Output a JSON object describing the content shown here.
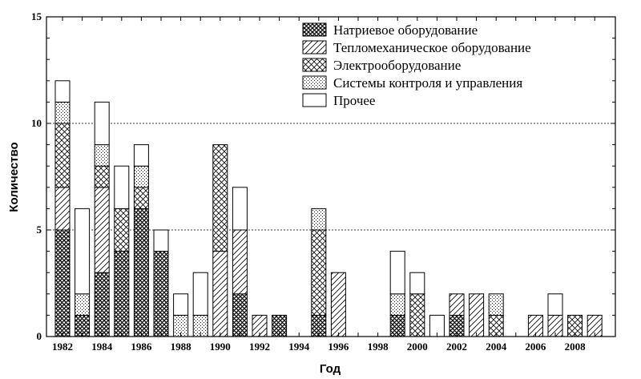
{
  "chart_data": {
    "type": "bar",
    "stacked": true,
    "title": "",
    "xlabel": "Год",
    "ylabel": "Количество",
    "ylim": [
      0,
      15
    ],
    "y_ticks": [
      0,
      5,
      10,
      15
    ],
    "x_tick_labels": [
      "1982",
      "1984",
      "1986",
      "1988",
      "1990",
      "1992",
      "1994",
      "1996",
      "1998",
      "2000",
      "2002",
      "2004",
      "2006",
      "2008"
    ],
    "grid": "horizontal dotted at 5 and 10",
    "legend_position": "top-right",
    "categories": [
      "1982",
      "1983",
      "1984",
      "1985",
      "1986",
      "1987",
      "1988",
      "1989",
      "1990",
      "1991",
      "1992",
      "1993",
      "1994",
      "1995",
      "1996",
      "1997",
      "1998",
      "1999",
      "2000",
      "2001",
      "2002",
      "2003",
      "2004",
      "2005",
      "2006",
      "2007",
      "2008",
      "2009"
    ],
    "series": [
      {
        "name": "Натриевое оборудование",
        "pattern": "dense-crosshatch",
        "values": [
          5,
          1,
          3,
          4,
          6,
          4,
          0,
          0,
          0,
          2,
          0,
          1,
          0,
          1,
          0,
          0,
          0,
          1,
          0,
          0,
          1,
          0,
          0,
          0,
          0,
          0,
          0,
          0
        ]
      },
      {
        "name": "Тепломеханическое оборудование",
        "pattern": "diagonal",
        "values": [
          2,
          0,
          4,
          0,
          0,
          0,
          0,
          0,
          4,
          3,
          1,
          0,
          0,
          0,
          3,
          0,
          0,
          0,
          0,
          0,
          1,
          2,
          0,
          0,
          1,
          1,
          0,
          1
        ]
      },
      {
        "name": "Электрооборудование",
        "pattern": "crosshatch",
        "values": [
          3,
          0,
          1,
          2,
          1,
          0,
          0,
          0,
          5,
          0,
          0,
          0,
          0,
          4,
          0,
          0,
          0,
          0,
          2,
          0,
          0,
          0,
          1,
          0,
          0,
          0,
          1,
          0
        ]
      },
      {
        "name": "Системы контроля и управления",
        "pattern": "dots",
        "values": [
          1,
          1,
          1,
          0,
          1,
          0,
          1,
          1,
          0,
          0,
          0,
          0,
          0,
          1,
          0,
          0,
          0,
          1,
          0,
          0,
          0,
          0,
          1,
          0,
          0,
          0,
          0,
          0
        ]
      },
      {
        "name": "Прочее",
        "pattern": "blank",
        "values": [
          1,
          4,
          2,
          2,
          1,
          1,
          1,
          2,
          0,
          2,
          0,
          0,
          0,
          0,
          0,
          0,
          0,
          2,
          1,
          1,
          0,
          0,
          0,
          0,
          0,
          1,
          0,
          0
        ]
      }
    ]
  }
}
